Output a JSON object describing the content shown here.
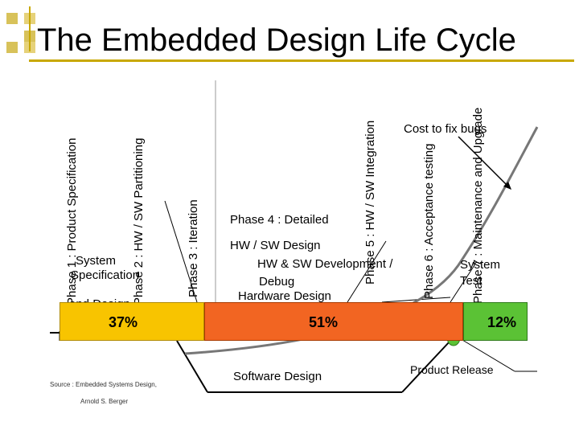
{
  "title": "The Embedded Design Life Cycle",
  "phases": {
    "p1": "Phase 1 : Product Specification",
    "p2": "Phase 2 : HW / SW Partitioning",
    "p3": "Phase 3 : Iteration",
    "p5": "Phase 5 : HW / SW Integration",
    "p6": "Phase 6 : Acceptance testing",
    "p7": "Phase 7 : Maintenance and Upgrade"
  },
  "labels": {
    "system_spec_1": "System",
    "system_spec_2": "Specification",
    "system_spec_3": "and Design",
    "phase4": "Phase 4 : Detailed",
    "hwsw_design": "HW / SW Design",
    "dev_line": "HW & SW Development /",
    "debug": "Debug",
    "hardware_design": "Hardware Design",
    "software_design": "Software Design",
    "system_test_1": "System",
    "system_test_2": "Test",
    "cost_to_fix": "Cost to fix bugs",
    "product_release": "Product Release",
    "source_1": "Source : Embedded Systems Design,",
    "source_2": "Arnold S. Berger"
  },
  "percentages": {
    "a": "37%",
    "b": "51%",
    "c": "12%"
  },
  "colors": {
    "yellow": "#f8c400",
    "orange": "#f26522",
    "green": "#5bc235"
  }
}
